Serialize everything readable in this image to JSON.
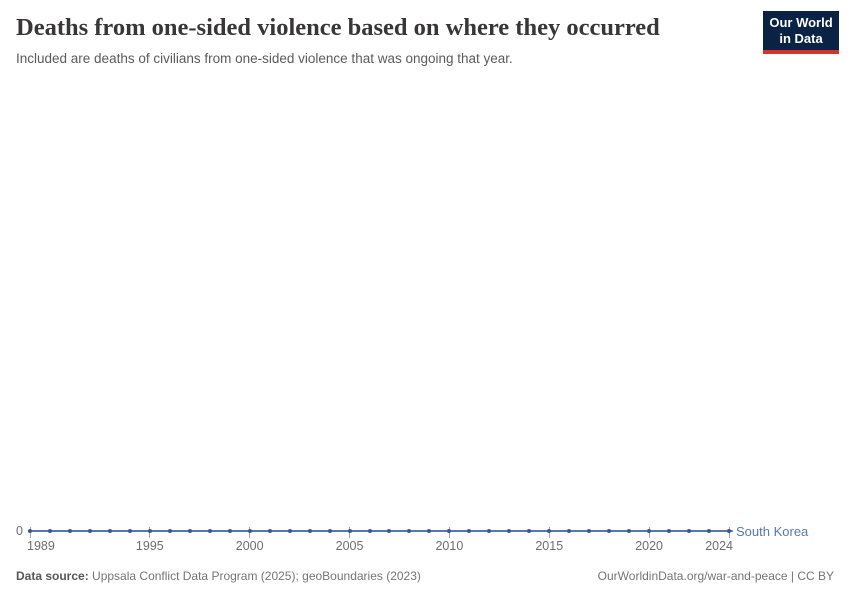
{
  "header": {
    "title": "Deaths from one-sided violence based on where they occurred",
    "subtitle": "Included are deaths of civilians from one-sided violence that was ongoing that year.",
    "logo": {
      "line1": "Our World",
      "line2": "in Data"
    }
  },
  "chart_data": {
    "type": "line",
    "title": "Deaths from one-sided violence based on where they occurred",
    "xlabel": "",
    "ylabel": "",
    "xlim": [
      1989,
      2024
    ],
    "ylim": [
      0,
      0
    ],
    "grid": false,
    "legend_position": "right-of-line-end",
    "x": [
      1989,
      1990,
      1991,
      1992,
      1993,
      1994,
      1995,
      1996,
      1997,
      1998,
      1999,
      2000,
      2001,
      2002,
      2003,
      2004,
      2005,
      2006,
      2007,
      2008,
      2009,
      2010,
      2011,
      2012,
      2013,
      2014,
      2015,
      2016,
      2017,
      2018,
      2019,
      2020,
      2021,
      2022,
      2023,
      2024
    ],
    "series": [
      {
        "name": "South Korea",
        "values": [
          0,
          0,
          0,
          0,
          0,
          0,
          0,
          0,
          0,
          0,
          0,
          0,
          0,
          0,
          0,
          0,
          0,
          0,
          0,
          0,
          0,
          0,
          0,
          0,
          0,
          0,
          0,
          0,
          0,
          0,
          0,
          0,
          0,
          0,
          0,
          0
        ],
        "color": "#5578b4",
        "dot_color": "#36589c",
        "label_color": "#5578b4"
      }
    ],
    "x_ticks": [
      1989,
      1995,
      2000,
      2005,
      2010,
      2015,
      2020,
      2024
    ],
    "y_tick_label": "0"
  },
  "footer": {
    "source_label": "Data source:",
    "source_text": "Uppsala Conflict Data Program (2025); geoBoundaries (2023)",
    "right_text": "OurWorldinData.org/war-and-peace | CC BY"
  },
  "colors": {
    "logo_bg": "#0a2345",
    "logo_stripe": "#d0342c",
    "title_text": "#383636",
    "axis_text": "#6e6e6e",
    "tick_mark": "#a5a5a5"
  }
}
